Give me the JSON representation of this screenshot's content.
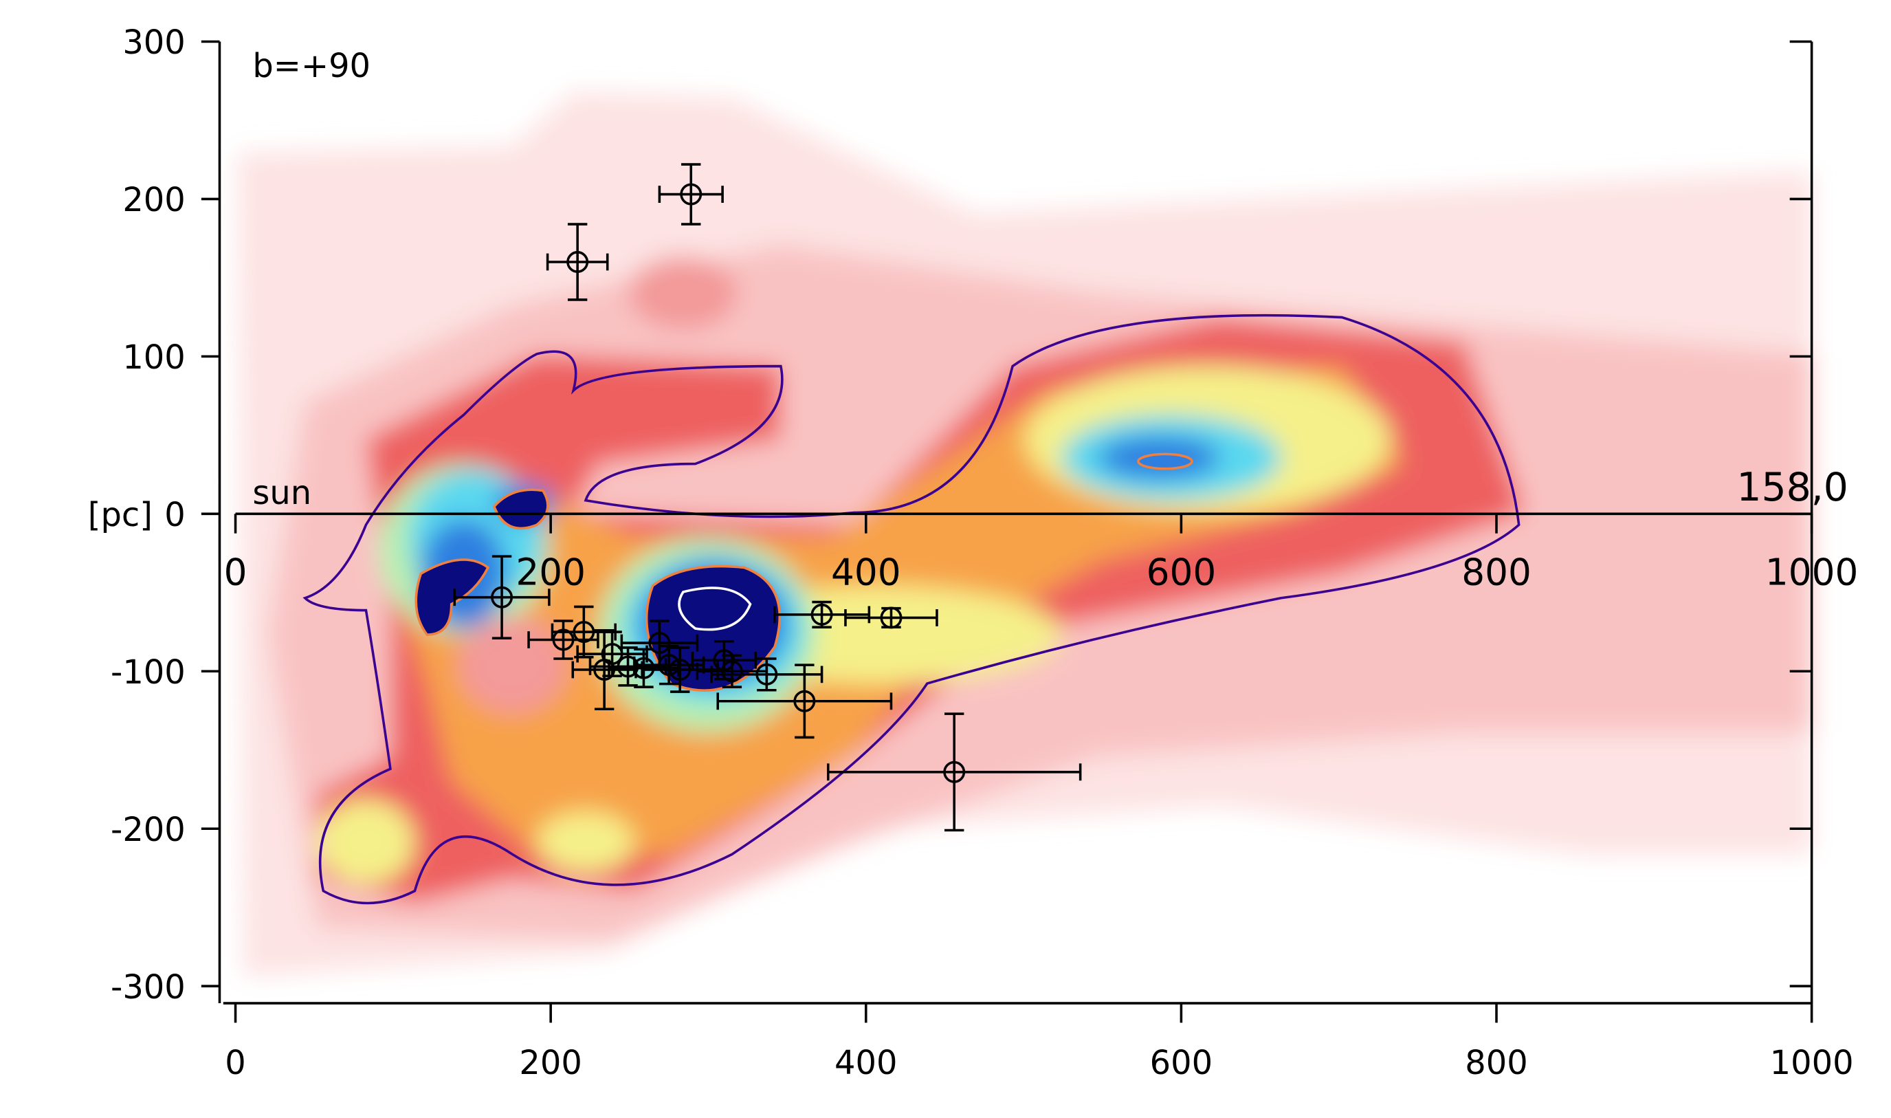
{
  "chart_data": {
    "type": "scatter",
    "annotation": "b=+90",
    "ylabel": "[pc]",
    "origin_label": "sun",
    "marker_label": "158,0",
    "color": "#000000",
    "x": [
      217,
      289,
      169,
      372,
      416,
      208,
      221,
      234,
      239,
      249,
      259,
      269,
      275,
      282,
      310,
      315,
      337,
      361,
      456
    ],
    "y": [
      160,
      203,
      -53,
      -64,
      -66,
      -80,
      -75,
      -99,
      -89,
      -97,
      -98,
      -82,
      -96,
      -99,
      -93,
      -100,
      -102,
      -119,
      -164
    ],
    "xerr": [
      19,
      20,
      30,
      30,
      29,
      22,
      20,
      20,
      22,
      24,
      22,
      24,
      22,
      24,
      20,
      22,
      35,
      55,
      80
    ],
    "yerr": [
      24,
      19,
      26,
      8,
      6,
      12,
      16,
      25,
      14,
      12,
      12,
      14,
      12,
      14,
      12,
      10,
      10,
      23,
      37
    ],
    "xlim": [
      0,
      1000
    ],
    "ylim": [
      -300,
      300
    ],
    "xticks": [
      0,
      200,
      400,
      600,
      800,
      1000
    ],
    "yticks": [
      300,
      200,
      100,
      0,
      -100,
      -200,
      -300
    ]
  }
}
